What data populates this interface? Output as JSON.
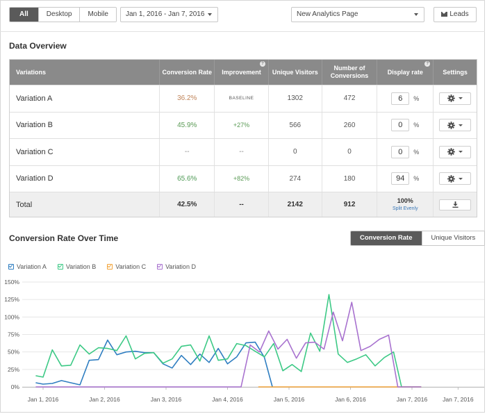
{
  "toolbar": {
    "segments": [
      "All",
      "Desktop",
      "Mobile"
    ],
    "active_segment": "All",
    "date_range": "Jan 1, 2016 - Jan 7, 2016",
    "page_select": "New Analytics Page",
    "leads_label": "Leads"
  },
  "overview": {
    "title": "Data Overview",
    "headers": [
      "Variations",
      "Conversion Rate",
      "Improvement",
      "Unique Visitors",
      "Number of Conversions",
      "Display rate",
      "Settings"
    ],
    "rows": [
      {
        "name": "Variation A",
        "rate": "36.2%",
        "improvement": "BASELINE",
        "visitors": "1302",
        "conversions": "472",
        "display": "6"
      },
      {
        "name": "Variation B",
        "rate": "45.9%",
        "improvement": "+27%",
        "visitors": "566",
        "conversions": "260",
        "display": "0"
      },
      {
        "name": "Variation C",
        "rate": "--",
        "improvement": "--",
        "visitors": "0",
        "conversions": "0",
        "display": "0"
      },
      {
        "name": "Variation D",
        "rate": "65.6%",
        "improvement": "+82%",
        "visitors": "274",
        "conversions": "180",
        "display": "94"
      }
    ],
    "pct_sign": "%",
    "total": {
      "label": "Total",
      "rate": "42.5%",
      "improvement": "--",
      "visitors": "2142",
      "conversions": "912",
      "display": "100%",
      "split_link": "Split Evenly"
    }
  },
  "chart_section": {
    "title": "Conversion Rate Over Time",
    "toggle": [
      "Conversion Rate",
      "Unique Visitors"
    ],
    "active_toggle": "Conversion Rate"
  },
  "colors": {
    "A": "#2f7ec1",
    "B": "#3cc985",
    "C": "#f2a43a",
    "D": "#a872cf",
    "grid": "#e6e6e6"
  },
  "chart_data": {
    "type": "line",
    "ylim": [
      0,
      150
    ],
    "yticks": [
      "0%",
      "25%",
      "50%",
      "75%",
      "100%",
      "125%",
      "150%"
    ],
    "x_range": [
      0,
      6.75
    ],
    "xticks": [
      {
        "x": 0,
        "label": "Jan 1, 2016"
      },
      {
        "x": 1,
        "label": "Jan 2, 2016"
      },
      {
        "x": 2,
        "label": "Jan 3, 2016"
      },
      {
        "x": 3,
        "label": "Jan 4, 2016"
      },
      {
        "x": 4,
        "label": "Jan 5, 2016"
      },
      {
        "x": 5,
        "label": "Jan 6, 2016"
      },
      {
        "x": 6,
        "label": "Jan 7, 2016"
      },
      {
        "x": 6.75,
        "label": "Jan 7, 2016"
      }
    ],
    "series": [
      {
        "key": "A",
        "name": "Variation A",
        "points": [
          [
            -0.12,
            6
          ],
          [
            0,
            4
          ],
          [
            0.15,
            5
          ],
          [
            0.3,
            9
          ],
          [
            0.45,
            6
          ],
          [
            0.6,
            3
          ],
          [
            0.75,
            38
          ],
          [
            0.9,
            39
          ],
          [
            1.05,
            67
          ],
          [
            1.2,
            46
          ],
          [
            1.35,
            50
          ],
          [
            1.5,
            51
          ],
          [
            1.65,
            49
          ],
          [
            1.8,
            49
          ],
          [
            1.95,
            33
          ],
          [
            2.1,
            27
          ],
          [
            2.25,
            45
          ],
          [
            2.4,
            32
          ],
          [
            2.55,
            47
          ],
          [
            2.7,
            35
          ],
          [
            2.85,
            55
          ],
          [
            3.0,
            33
          ],
          [
            3.15,
            43
          ],
          [
            3.3,
            63
          ],
          [
            3.45,
            64
          ],
          [
            3.6,
            42
          ],
          [
            3.73,
            0
          ]
        ]
      },
      {
        "key": "B",
        "name": "Variation B",
        "points": [
          [
            -0.12,
            16
          ],
          [
            0,
            14
          ],
          [
            0.15,
            53
          ],
          [
            0.3,
            30
          ],
          [
            0.45,
            31
          ],
          [
            0.6,
            60
          ],
          [
            0.75,
            47
          ],
          [
            0.9,
            56
          ],
          [
            1.05,
            55
          ],
          [
            1.2,
            52
          ],
          [
            1.35,
            73
          ],
          [
            1.5,
            40
          ],
          [
            1.65,
            48
          ],
          [
            1.8,
            49
          ],
          [
            1.95,
            34
          ],
          [
            2.1,
            40
          ],
          [
            2.25,
            58
          ],
          [
            2.4,
            60
          ],
          [
            2.55,
            37
          ],
          [
            2.7,
            73
          ],
          [
            2.85,
            38
          ],
          [
            3.0,
            40
          ],
          [
            3.15,
            62
          ],
          [
            3.3,
            59
          ],
          [
            3.45,
            51
          ],
          [
            3.6,
            43
          ],
          [
            3.75,
            62
          ],
          [
            3.9,
            23
          ],
          [
            4.05,
            32
          ],
          [
            4.2,
            22
          ],
          [
            4.35,
            77
          ],
          [
            4.5,
            51
          ],
          [
            4.65,
            132
          ],
          [
            4.8,
            47
          ],
          [
            4.95,
            35
          ],
          [
            5.1,
            40
          ],
          [
            5.25,
            46
          ],
          [
            5.4,
            30
          ],
          [
            5.55,
            42
          ],
          [
            5.7,
            50
          ],
          [
            5.83,
            0
          ],
          [
            6.15,
            0
          ]
        ]
      },
      {
        "key": "C",
        "name": "Variation C",
        "points": [
          [
            3.5,
            0
          ],
          [
            6.15,
            0
          ]
        ]
      },
      {
        "key": "D",
        "name": "Variation D",
        "points": [
          [
            -0.12,
            0
          ],
          [
            3.22,
            0
          ],
          [
            3.37,
            60
          ],
          [
            3.52,
            50
          ],
          [
            3.67,
            80
          ],
          [
            3.82,
            54
          ],
          [
            3.97,
            68
          ],
          [
            4.12,
            41
          ],
          [
            4.27,
            63
          ],
          [
            4.42,
            64
          ],
          [
            4.57,
            54
          ],
          [
            4.72,
            107
          ],
          [
            4.87,
            66
          ],
          [
            5.02,
            121
          ],
          [
            5.17,
            52
          ],
          [
            5.32,
            58
          ],
          [
            5.47,
            68
          ],
          [
            5.62,
            74
          ],
          [
            5.77,
            0
          ],
          [
            6.15,
            0
          ]
        ]
      }
    ]
  }
}
